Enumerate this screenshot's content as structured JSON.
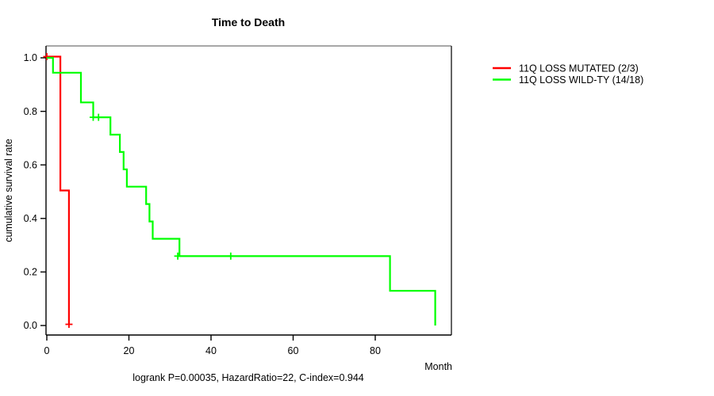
{
  "title": "Time to Death",
  "stats_annotation": "logrank P=0.00035, HazardRatio=22, C-index=0.944",
  "axes": {
    "x_label": "Month",
    "y_label": "cumulative survival rate",
    "x_ticks": [
      {
        "v": 0,
        "label": "0"
      },
      {
        "v": 20,
        "label": "20"
      },
      {
        "v": 40,
        "label": "40"
      },
      {
        "v": 60,
        "label": "60"
      },
      {
        "v": 80,
        "label": "80"
      }
    ],
    "y_ticks": [
      {
        "v": 0.0,
        "label": "0.0"
      },
      {
        "v": 0.2,
        "label": "0.2"
      },
      {
        "v": 0.4,
        "label": "0.4"
      },
      {
        "v": 0.6,
        "label": "0.6"
      },
      {
        "v": 0.8,
        "label": "0.8"
      },
      {
        "v": 1.0,
        "label": "1.0"
      }
    ],
    "xlim": [
      0,
      98.6
    ],
    "ylim": [
      0,
      1
    ]
  },
  "legend": {
    "items": [
      {
        "label": "11Q LOSS MUTATED (2/3)",
        "color": "#ff0000"
      },
      {
        "label": "11Q LOSS WILD-TY (14/18)",
        "color": "#00ff00"
      }
    ]
  },
  "chart_data": {
    "type": "line",
    "subtype": "kaplan-meier-step",
    "title": "Time to Death",
    "xlabel": "Month",
    "ylabel": "cumulative survival rate",
    "xlim": [
      0,
      98.6
    ],
    "ylim": [
      0,
      1
    ],
    "legend_position": "right-outside",
    "grid": false,
    "annotation": "logrank P=0.00035, HazardRatio=22, C-index=0.944",
    "series": [
      {
        "name": "11Q LOSS MUTATED (2/3)",
        "color": "#ff0000",
        "steps": [
          [
            0,
            1.0
          ],
          [
            3.3,
            1.0
          ],
          [
            3.3,
            0.5
          ],
          [
            5.4,
            0.5
          ],
          [
            5.4,
            0.0
          ]
        ],
        "censors": [
          [
            0,
            1.0
          ],
          [
            5.4,
            0.0
          ]
        ]
      },
      {
        "name": "11Q LOSS WILD-TY (14/18)",
        "color": "#00ff00",
        "steps": [
          [
            0,
            1.0
          ],
          [
            1.5,
            1.0
          ],
          [
            1.5,
            0.9444
          ],
          [
            8.3,
            0.9444
          ],
          [
            8.3,
            0.8333
          ],
          [
            11.3,
            0.8333
          ],
          [
            11.3,
            0.7778
          ],
          [
            15.5,
            0.7778
          ],
          [
            15.5,
            0.713
          ],
          [
            17.8,
            0.713
          ],
          [
            17.8,
            0.6481
          ],
          [
            18.7,
            0.6481
          ],
          [
            18.7,
            0.5833
          ],
          [
            19.5,
            0.5833
          ],
          [
            19.5,
            0.5185
          ],
          [
            24.2,
            0.5185
          ],
          [
            24.2,
            0.4537
          ],
          [
            25.0,
            0.4537
          ],
          [
            25.0,
            0.3889
          ],
          [
            25.8,
            0.3889
          ],
          [
            25.8,
            0.3241
          ],
          [
            32.3,
            0.3241
          ],
          [
            32.3,
            0.2593
          ],
          [
            83.6,
            0.2593
          ],
          [
            83.6,
            0.1296
          ],
          [
            94.6,
            0.1296
          ],
          [
            94.6,
            0.0
          ]
        ],
        "censors": [
          [
            11.3,
            0.7778
          ],
          [
            12.6,
            0.7778
          ],
          [
            31.9,
            0.2593
          ],
          [
            44.8,
            0.2593
          ]
        ]
      }
    ]
  }
}
